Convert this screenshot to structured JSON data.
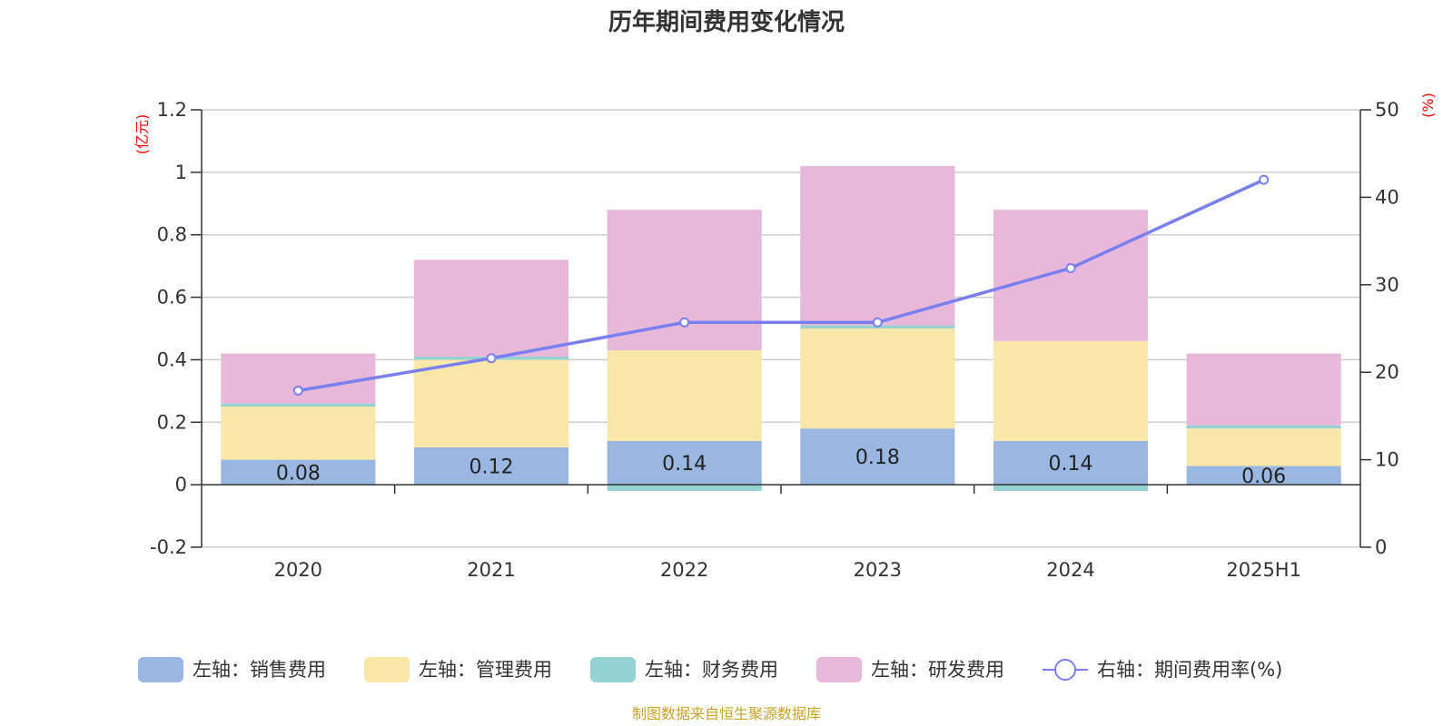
{
  "chart_data": {
    "type": "bar",
    "title": "历年期间费用变化情况",
    "categories": [
      "2020",
      "2021",
      "2022",
      "2023",
      "2024",
      "2025H1"
    ],
    "left_unit": "(亿元)",
    "right_unit": "(%)",
    "left_axis": {
      "min": -0.2,
      "max": 1.2,
      "ticks": [
        "-0.2",
        "0",
        "0.2",
        "0.4",
        "0.6",
        "0.8",
        "1",
        "1.2"
      ]
    },
    "right_axis": {
      "min": 0,
      "max": 50,
      "ticks": [
        "0",
        "10",
        "20",
        "30",
        "40",
        "50"
      ]
    },
    "grid": true,
    "stacked": true,
    "series": [
      {
        "name": "左轴：销售费用",
        "axis": "left",
        "color": "#9ab7e1",
        "values": [
          0.08,
          0.12,
          0.14,
          0.18,
          0.14,
          0.06
        ]
      },
      {
        "name": "左轴：管理费用",
        "axis": "left",
        "color": "#f8e7a8",
        "values": [
          0.17,
          0.28,
          0.29,
          0.32,
          0.32,
          0.12
        ]
      },
      {
        "name": "左轴：财务费用",
        "axis": "left",
        "color": "#95d3d3",
        "values": [
          0.01,
          0.01,
          -0.02,
          0.01,
          -0.02,
          0.01
        ]
      },
      {
        "name": "左轴：研发费用",
        "axis": "left",
        "color": "#e7b8d9",
        "values": [
          0.16,
          0.31,
          0.45,
          0.51,
          0.42,
          0.23
        ]
      },
      {
        "name": "右轴：期间费用率(%)",
        "axis": "right",
        "type": "line",
        "color": "#7a7ff0",
        "values": [
          17.9,
          21.6,
          25.7,
          25.7,
          31.9,
          42.0
        ]
      }
    ],
    "data_labels": [
      "0.08",
      "0.12",
      "0.14",
      "0.18",
      "0.14",
      "0.06"
    ],
    "legend_position": "bottom",
    "source": "制图数据来自恒生聚源数据库"
  }
}
